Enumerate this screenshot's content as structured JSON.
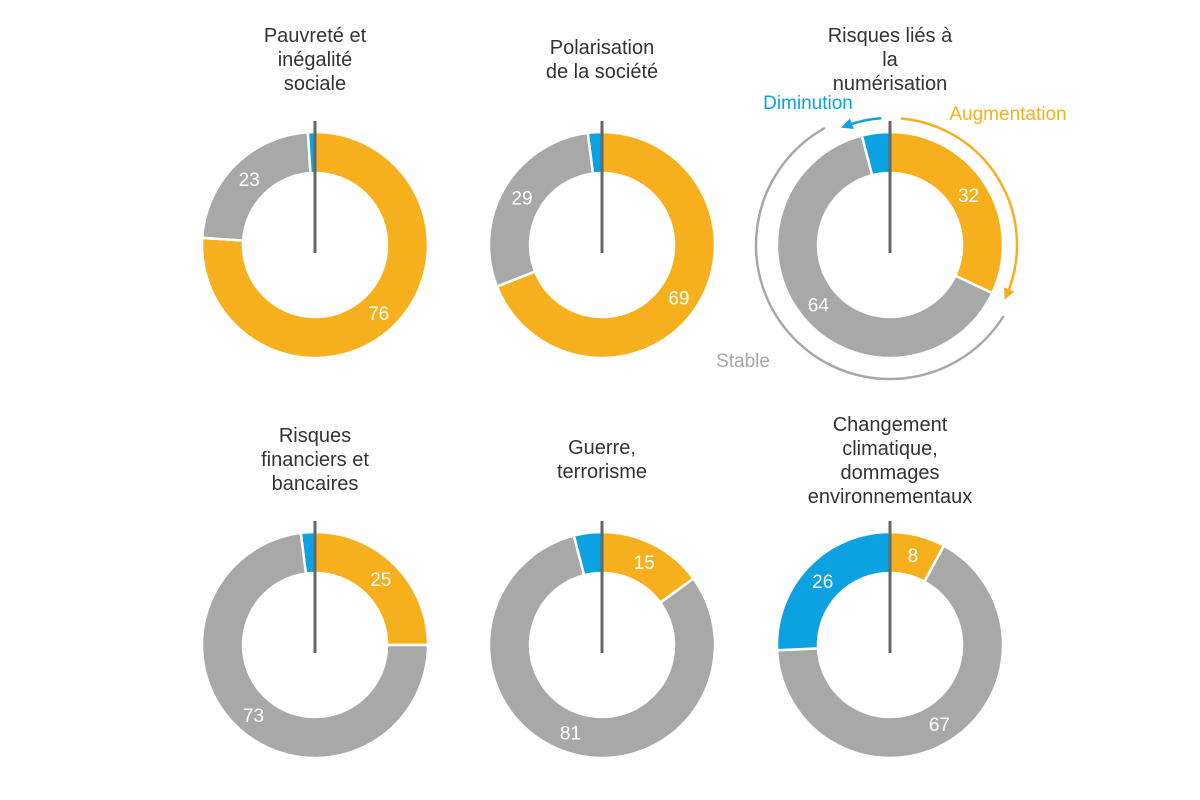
{
  "colors": {
    "augmentation": "#F6B01E",
    "stable": "#A8A8A8",
    "diminution": "#0CA1E0",
    "separator": "#666666"
  },
  "legend": {
    "augmentation": "Augmentation",
    "diminution": "Diminution",
    "stable": "Stable"
  },
  "chart_data": [
    {
      "type": "pie",
      "title": [
        "Pauvreté et",
        "inégalité",
        "sociale"
      ],
      "augmentation": 76,
      "stable": 23,
      "diminution": 1,
      "labels": {
        "augmentation": "76",
        "stable": "23",
        "diminution": ""
      }
    },
    {
      "type": "pie",
      "title": [
        "Polarisation",
        "de la société"
      ],
      "augmentation": 69,
      "stable": 29,
      "diminution": 2,
      "labels": {
        "augmentation": "69",
        "stable": "29",
        "diminution": ""
      }
    },
    {
      "type": "pie",
      "title": [
        "Risques liés à",
        "la",
        "numérisation"
      ],
      "augmentation": 32,
      "stable": 64,
      "diminution": 4,
      "labels": {
        "augmentation": "32",
        "stable": "64",
        "diminution": ""
      }
    },
    {
      "type": "pie",
      "title": [
        "Risques",
        "financiers et",
        "bancaires"
      ],
      "augmentation": 25,
      "stable": 73,
      "diminution": 2,
      "labels": {
        "augmentation": "25",
        "stable": "73",
        "diminution": ""
      }
    },
    {
      "type": "pie",
      "title": [
        "Guerre,",
        "terrorisme"
      ],
      "augmentation": 15,
      "stable": 81,
      "diminution": 4,
      "labels": {
        "augmentation": "15",
        "stable": "81",
        "diminution": ""
      }
    },
    {
      "type": "pie",
      "title": [
        "Changement",
        "climatique,",
        "dommages",
        "environnementaux"
      ],
      "augmentation": 8,
      "stable": 67,
      "diminution": 26,
      "labels": {
        "augmentation": "8",
        "stable": "67",
        "diminution": "26"
      }
    }
  ]
}
